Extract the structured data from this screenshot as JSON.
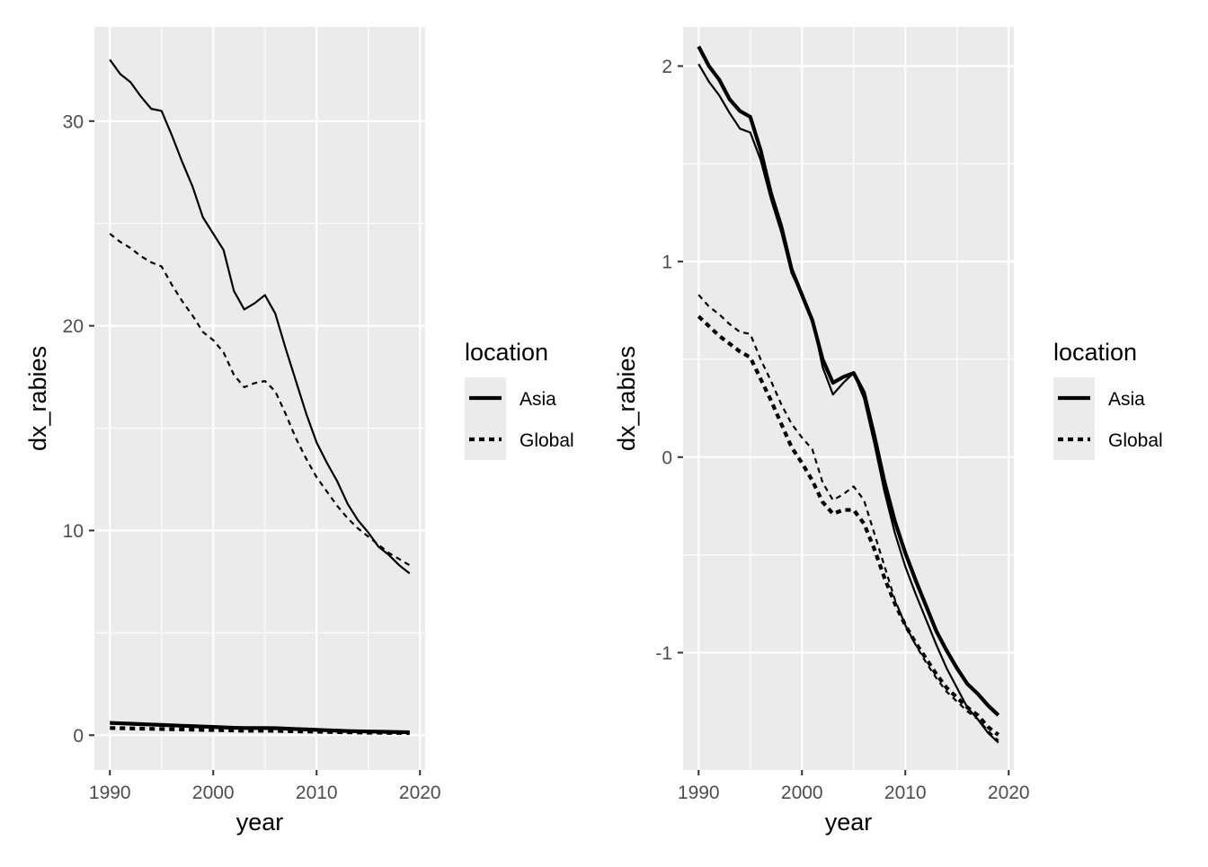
{
  "chart_data": [
    {
      "type": "line",
      "xlabel": "year",
      "ylabel": "dx_rabies",
      "xlim": [
        1988.5,
        2020.5
      ],
      "ylim": [
        -1.7,
        34.6
      ],
      "x_ticks": [
        1990,
        2000,
        2010,
        2020
      ],
      "y_ticks": [
        0,
        10,
        20,
        30
      ],
      "x_tick_labels": [
        "1990",
        "2000",
        "2010",
        "2020"
      ],
      "y_tick_labels": [
        "0",
        "10",
        "20",
        "30"
      ],
      "grid": true,
      "legend": {
        "title": "location",
        "position": "right",
        "entries": [
          {
            "label": "Asia",
            "dash": "solid"
          },
          {
            "label": "Global",
            "dash": "dashed"
          }
        ]
      },
      "series": [
        {
          "location": "Asia",
          "line_width": "thin",
          "x": [
            1990,
            1991,
            1992,
            1993,
            1994,
            1995,
            1996,
            1997,
            1998,
            1999,
            2000,
            2001,
            2002,
            2003,
            2004,
            2005,
            2006,
            2007,
            2008,
            2009,
            2010,
            2011,
            2012,
            2013,
            2014,
            2015,
            2016,
            2017,
            2018,
            2019
          ],
          "values": [
            33.0,
            32.3,
            31.9,
            31.2,
            30.6,
            30.5,
            29.3,
            28.0,
            26.8,
            25.3,
            24.5,
            23.7,
            21.7,
            20.8,
            21.1,
            21.5,
            20.6,
            18.9,
            17.3,
            15.7,
            14.3,
            13.3,
            12.4,
            11.3,
            10.5,
            9.9,
            9.2,
            8.8,
            8.3,
            7.9
          ]
        },
        {
          "location": "Global",
          "line_width": "thin",
          "x": [
            1990,
            1991,
            1992,
            1993,
            1994,
            1995,
            1996,
            1997,
            1998,
            1999,
            2000,
            2001,
            2002,
            2003,
            2004,
            2005,
            2006,
            2007,
            2008,
            2009,
            2010,
            2011,
            2012,
            2013,
            2014,
            2015,
            2016,
            2017,
            2018,
            2019
          ],
          "values": [
            24.5,
            24.1,
            23.8,
            23.4,
            23.1,
            22.9,
            22.0,
            21.2,
            20.5,
            19.7,
            19.3,
            18.7,
            17.6,
            17.0,
            17.2,
            17.3,
            16.8,
            15.7,
            14.5,
            13.5,
            12.6,
            11.9,
            11.2,
            10.6,
            10.1,
            9.7,
            9.3,
            8.9,
            8.6,
            8.3
          ]
        },
        {
          "location": "Asia",
          "line_width": "thick",
          "x": [
            1990,
            1991,
            1992,
            1993,
            1994,
            1995,
            1996,
            1997,
            1998,
            1999,
            2000,
            2001,
            2002,
            2003,
            2004,
            2005,
            2006,
            2007,
            2008,
            2009,
            2010,
            2011,
            2012,
            2013,
            2014,
            2015,
            2016,
            2017,
            2018,
            2019
          ],
          "values": [
            0.6,
            0.58,
            0.56,
            0.54,
            0.52,
            0.5,
            0.48,
            0.46,
            0.44,
            0.42,
            0.4,
            0.38,
            0.36,
            0.35,
            0.35,
            0.35,
            0.34,
            0.32,
            0.3,
            0.28,
            0.26,
            0.24,
            0.22,
            0.2,
            0.19,
            0.18,
            0.17,
            0.16,
            0.15,
            0.14
          ]
        },
        {
          "location": "Global",
          "line_width": "thick",
          "x": [
            1990,
            1991,
            1992,
            1993,
            1994,
            1995,
            1996,
            1997,
            1998,
            1999,
            2000,
            2001,
            2002,
            2003,
            2004,
            2005,
            2006,
            2007,
            2008,
            2009,
            2010,
            2011,
            2012,
            2013,
            2014,
            2015,
            2016,
            2017,
            2018,
            2019
          ],
          "values": [
            0.35,
            0.34,
            0.33,
            0.32,
            0.31,
            0.3,
            0.29,
            0.28,
            0.27,
            0.26,
            0.25,
            0.24,
            0.23,
            0.22,
            0.22,
            0.22,
            0.21,
            0.2,
            0.19,
            0.18,
            0.17,
            0.16,
            0.15,
            0.14,
            0.13,
            0.12,
            0.12,
            0.11,
            0.11,
            0.1
          ]
        }
      ]
    },
    {
      "type": "line",
      "xlabel": "year",
      "ylabel": "dx_rabies",
      "xlim": [
        1988.5,
        2020.5
      ],
      "ylim": [
        -1.6,
        2.2
      ],
      "x_ticks": [
        1990,
        2000,
        2010,
        2020
      ],
      "y_ticks": [
        -1,
        0,
        1,
        2
      ],
      "x_tick_labels": [
        "1990",
        "2000",
        "2010",
        "2020"
      ],
      "y_tick_labels": [
        "-1",
        "0",
        "1",
        "2"
      ],
      "grid": true,
      "legend": {
        "title": "location",
        "position": "right",
        "entries": [
          {
            "label": "Asia",
            "dash": "solid"
          },
          {
            "label": "Global",
            "dash": "dashed"
          }
        ]
      },
      "series": [
        {
          "location": "Asia",
          "line_width": "thick",
          "x": [
            1990,
            1991,
            1992,
            1993,
            1994,
            1995,
            1996,
            1997,
            1998,
            1999,
            2000,
            2001,
            2002,
            2003,
            2004,
            2005,
            2006,
            2007,
            2008,
            2009,
            2010,
            2011,
            2012,
            2013,
            2014,
            2015,
            2016,
            2017,
            2018,
            2019
          ],
          "values": [
            2.1,
            2.0,
            1.93,
            1.83,
            1.77,
            1.74,
            1.57,
            1.35,
            1.18,
            0.96,
            0.83,
            0.7,
            0.5,
            0.38,
            0.41,
            0.43,
            0.33,
            0.11,
            -0.13,
            -0.33,
            -0.49,
            -0.63,
            -0.76,
            -0.89,
            -0.99,
            -1.08,
            -1.16,
            -1.21,
            -1.27,
            -1.32
          ]
        },
        {
          "location": "Asia",
          "line_width": "thin",
          "x": [
            1990,
            1991,
            1992,
            1993,
            1994,
            1995,
            1996,
            1997,
            1998,
            1999,
            2000,
            2001,
            2002,
            2003,
            2004,
            2005,
            2006,
            2007,
            2008,
            2009,
            2010,
            2011,
            2012,
            2013,
            2014,
            2015,
            2016,
            2017,
            2018,
            2019
          ],
          "values": [
            2.01,
            1.92,
            1.85,
            1.76,
            1.68,
            1.66,
            1.52,
            1.32,
            1.15,
            0.94,
            0.83,
            0.71,
            0.46,
            0.32,
            0.38,
            0.43,
            0.3,
            0.07,
            -0.18,
            -0.39,
            -0.56,
            -0.7,
            -0.83,
            -0.96,
            -1.08,
            -1.18,
            -1.28,
            -1.34,
            -1.41,
            -1.46
          ]
        },
        {
          "location": "Global",
          "line_width": "thick",
          "x": [
            1990,
            1991,
            1992,
            1993,
            1994,
            1995,
            1996,
            1997,
            1998,
            1999,
            2000,
            2001,
            2002,
            2003,
            2004,
            2005,
            2006,
            2007,
            2008,
            2009,
            2010,
            2011,
            2012,
            2013,
            2014,
            2015,
            2016,
            2017,
            2018,
            2019
          ],
          "values": [
            0.72,
            0.67,
            0.62,
            0.58,
            0.54,
            0.51,
            0.4,
            0.29,
            0.17,
            0.05,
            -0.03,
            -0.12,
            -0.23,
            -0.29,
            -0.27,
            -0.27,
            -0.34,
            -0.47,
            -0.62,
            -0.75,
            -0.86,
            -0.95,
            -1.03,
            -1.11,
            -1.18,
            -1.23,
            -1.28,
            -1.32,
            -1.38,
            -1.42
          ]
        },
        {
          "location": "Global",
          "line_width": "thin",
          "x": [
            1990,
            1991,
            1992,
            1993,
            1994,
            1995,
            1996,
            1997,
            1998,
            1999,
            2000,
            2001,
            2002,
            2003,
            2004,
            2005,
            2006,
            2007,
            2008,
            2009,
            2010,
            2011,
            2012,
            2013,
            2014,
            2015,
            2016,
            2017,
            2018,
            2019
          ],
          "values": [
            0.83,
            0.77,
            0.73,
            0.68,
            0.64,
            0.63,
            0.5,
            0.39,
            0.27,
            0.17,
            0.1,
            0.04,
            -0.13,
            -0.22,
            -0.19,
            -0.15,
            -0.22,
            -0.39,
            -0.56,
            -0.73,
            -0.86,
            -0.96,
            -1.05,
            -1.13,
            -1.2,
            -1.25,
            -1.3,
            -1.34,
            -1.4,
            -1.45
          ]
        }
      ]
    }
  ]
}
